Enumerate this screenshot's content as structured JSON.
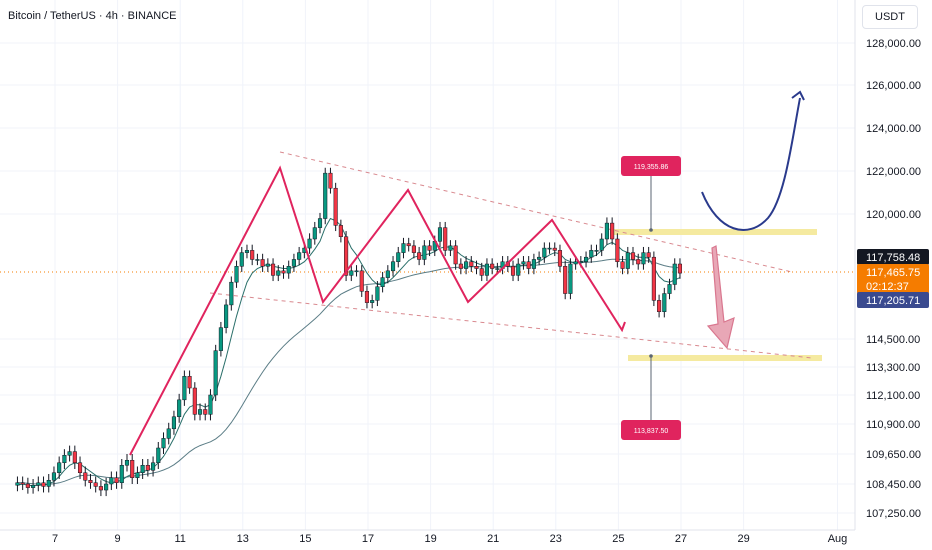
{
  "header": {
    "title": "Bitcoin / TetherUS · 4h · BINANCE"
  },
  "currency_button": "USDT",
  "colors": {
    "up": "#089981",
    "down": "#f23645",
    "ma_fast": "#2a6f6a",
    "ma_slow": "#5b7d86",
    "zigzag": "#e0245e",
    "highlight": "#f5eaa0",
    "curve": "#2a3a8c",
    "arrow": "#d9778f",
    "last_price": "#f57c00"
  },
  "price_tags": {
    "top": "117,758.48",
    "last": "117,465.75",
    "countdown": "02:12:37",
    "bottom": "117,205.71"
  },
  "labels": {
    "upper": "119,355.86",
    "lower": "113,837.50"
  },
  "chart_data": {
    "type": "candlestick",
    "title": "Bitcoin / TetherUS · 4h · BINANCE",
    "y_ticks": [
      128000,
      126000,
      124000,
      122000,
      120000,
      114500,
      113300,
      112100,
      110900,
      109650,
      108450,
      107250
    ],
    "y_tick_labels": [
      "128,000.00",
      "126,000.00",
      "124,000.00",
      "122,000.00",
      "120,000.00",
      "114,500.00",
      "113,300.00",
      "112,100.00",
      "110,900.00",
      "109,650.00",
      "108,450.00",
      "107,250.00"
    ],
    "x_tick_labels": [
      "7",
      "9",
      "11",
      "13",
      "15",
      "17",
      "19",
      "21",
      "23",
      "25",
      "27",
      "29",
      "Aug"
    ],
    "x_tick_days": [
      7,
      9,
      11,
      13,
      15,
      17,
      19,
      21,
      23,
      25,
      27,
      29,
      32
    ],
    "candles_start_day": 5.8,
    "candles_per_day": 6,
    "closes": [
      108500,
      108450,
      108300,
      108400,
      108500,
      108350,
      108600,
      108900,
      109300,
      109600,
      109750,
      109300,
      108900,
      108600,
      108500,
      108350,
      108200,
      108450,
      108700,
      108500,
      109200,
      109400,
      108700,
      108900,
      109200,
      109000,
      109300,
      109900,
      110300,
      110700,
      111200,
      111900,
      112900,
      112400,
      111300,
      111500,
      111300,
      112100,
      114000,
      115000,
      116000,
      117000,
      117700,
      118300,
      118400,
      118000,
      118000,
      117700,
      117800,
      117300,
      117500,
      117400,
      117700,
      118000,
      118300,
      118500,
      118900,
      119400,
      119800,
      121900,
      121200,
      119500,
      119000,
      117300,
      117500,
      117500,
      116600,
      116100,
      116200,
      116800,
      117200,
      117500,
      117900,
      118300,
      118700,
      118600,
      118300,
      118000,
      118600,
      118400,
      118800,
      119400,
      118400,
      118600,
      117800,
      117600,
      117900,
      117700,
      117600,
      117300,
      117800,
      117600,
      117600,
      117900,
      117700,
      117300,
      117800,
      117900,
      117600,
      118000,
      118100,
      118500,
      118500,
      118400,
      117700,
      116500,
      117800,
      117900,
      117900,
      118100,
      118400,
      118400,
      118900,
      119600,
      118900,
      117900,
      117600,
      118300,
      118000,
      117800,
      118300,
      118100,
      116200,
      115700,
      116500,
      116900,
      117800,
      117400
    ],
    "opens": [
      108400,
      108500,
      108450,
      108300,
      108400,
      108500,
      108350,
      108600,
      108900,
      109300,
      109600,
      109750,
      109300,
      108900,
      108600,
      108500,
      108350,
      108200,
      108450,
      108700,
      108500,
      109200,
      109400,
      108700,
      108900,
      109200,
      109000,
      109300,
      109900,
      110300,
      110700,
      111200,
      111900,
      112900,
      112400,
      111300,
      111500,
      111300,
      112100,
      114000,
      115000,
      116000,
      117000,
      117700,
      118300,
      118400,
      118000,
      118000,
      117700,
      117800,
      117300,
      117500,
      117400,
      117700,
      118000,
      118300,
      118500,
      118900,
      119400,
      119800,
      121900,
      121200,
      119500,
      119000,
      117300,
      117500,
      117500,
      116600,
      116100,
      116200,
      116800,
      117200,
      117500,
      117900,
      118300,
      118700,
      118600,
      118300,
      118000,
      118600,
      118400,
      118800,
      119400,
      118400,
      118600,
      117800,
      117600,
      117900,
      117700,
      117600,
      117300,
      117800,
      117600,
      117600,
      117900,
      117700,
      117300,
      117800,
      117900,
      117600,
      118000,
      118100,
      118500,
      118500,
      118400,
      117700,
      116500,
      117800,
      117900,
      117900,
      118100,
      118400,
      118400,
      118900,
      119600,
      118900,
      117900,
      117600,
      118300,
      118000,
      117800,
      118300,
      118100,
      116200,
      115700,
      116500,
      116900,
      117800
    ],
    "ma_fast": [
      108400,
      108450,
      108400,
      108380,
      108400,
      108410,
      108450,
      108550,
      108750,
      109000,
      109200,
      109300,
      109250,
      109100,
      108950,
      108800,
      108650,
      108550,
      108500,
      108550,
      108600,
      108750,
      108850,
      108900,
      108950,
      109000,
      109100,
      109300,
      109550,
      109900,
      110300,
      110800,
      111300,
      111600,
      111700,
      111700,
      111600,
      111700,
      112200,
      112900,
      113700,
      114600,
      115500,
      116300,
      117000,
      117400,
      117600,
      117700,
      117800,
      117700,
      117650,
      117600,
      117600,
      117650,
      117750,
      117900,
      118150,
      118450,
      118800,
      119400,
      119800,
      119700,
      119500,
      119000,
      118500,
      118200,
      117800,
      117400,
      117100,
      116900,
      116900,
      117000,
      117200,
      117450,
      117700,
      117950,
      118100,
      118150,
      118200,
      118250,
      118350,
      118500,
      118550,
      118550,
      118400,
      118200,
      118050,
      117950,
      117850,
      117750,
      117700,
      117650,
      117650,
      117700,
      117700,
      117650,
      117700,
      117750,
      117750,
      117800,
      117900,
      118050,
      118200,
      118300,
      118250,
      118000,
      117900,
      117850,
      117900,
      117950,
      118100,
      118200,
      118400,
      118650,
      118750,
      118600,
      118400,
      118300,
      118200,
      118100,
      118100,
      118050,
      117650,
      117250,
      117050,
      117000,
      117100,
      117200
    ],
    "ma_slow": [
      108500,
      108500,
      108480,
      108460,
      108450,
      108440,
      108440,
      108460,
      108500,
      108560,
      108640,
      108720,
      108780,
      108800,
      108800,
      108780,
      108750,
      108720,
      108700,
      108690,
      108700,
      108730,
      108760,
      108790,
      108820,
      108850,
      108890,
      108940,
      109010,
      109100,
      109220,
      109380,
      109560,
      109740,
      109890,
      110000,
      110080,
      110160,
      110280,
      110450,
      110680,
      110960,
      111280,
      111640,
      112010,
      112380,
      112740,
      113080,
      113400,
      113690,
      113950,
      114190,
      114410,
      114610,
      114800,
      114990,
      115180,
      115380,
      115590,
      115840,
      116080,
      116290,
      116470,
      116590,
      116700,
      116800,
      116860,
      116900,
      116920,
      116940,
      116970,
      117010,
      117060,
      117120,
      117190,
      117260,
      117320,
      117370,
      117420,
      117460,
      117510,
      117560,
      117600,
      117630,
      117650,
      117660,
      117670,
      117680,
      117680,
      117680,
      117680,
      117680,
      117690,
      117700,
      117700,
      117700,
      117710,
      117720,
      117730,
      117740,
      117760,
      117790,
      117820,
      117850,
      117870,
      117870,
      117860,
      117860,
      117860,
      117870,
      117890,
      117910,
      117940,
      117980,
      118010,
      118010,
      118000,
      117990,
      117980,
      117960,
      117950,
      117930,
      117880,
      117800,
      117730,
      117680,
      117650,
      117630
    ],
    "support_price": 113837.5,
    "resistance_price": 119355.86,
    "last_price": 117465.75
  }
}
